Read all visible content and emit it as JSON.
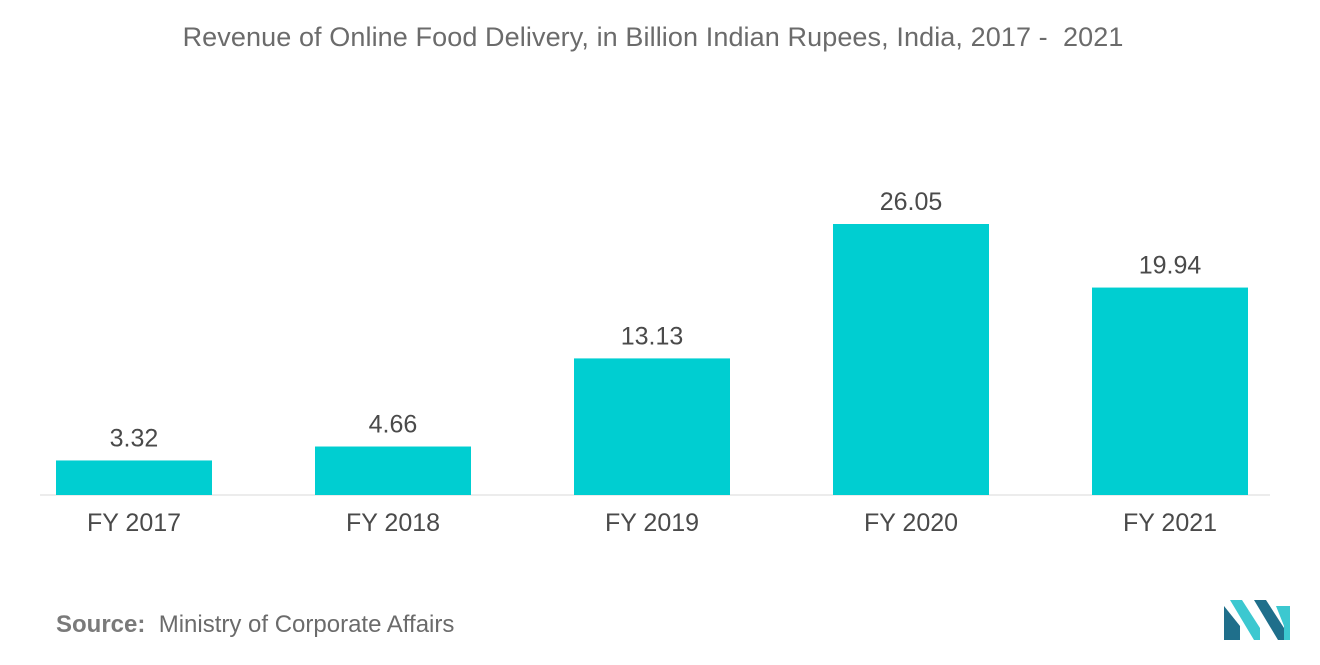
{
  "chart_data": {
    "type": "bar",
    "title": "Revenue of Online Food Delivery, in Billion Indian Rupees, India, 2017 -  2021",
    "categories": [
      "FY 2017",
      "FY 2018",
      "FY 2019",
      "FY 2020",
      "FY 2021"
    ],
    "values": [
      3.32,
      4.66,
      13.13,
      26.05,
      19.94
    ],
    "data_labels": [
      "3.32",
      "4.66",
      "13.13",
      "26.05",
      "19.94"
    ],
    "xlabel": "",
    "ylabel": "",
    "ylim": [
      0,
      26.05
    ],
    "grid": false,
    "legend": "none",
    "bar_color": "#00ced1"
  },
  "source": {
    "label": "Source:",
    "text": "Ministry of Corporate Affairs"
  },
  "colors": {
    "bar": "#00ced1",
    "text": "#6b6b6b",
    "axis": "#d9d9d9",
    "logo_dark": "#1f6f8b",
    "logo_light": "#3cc8d0"
  }
}
